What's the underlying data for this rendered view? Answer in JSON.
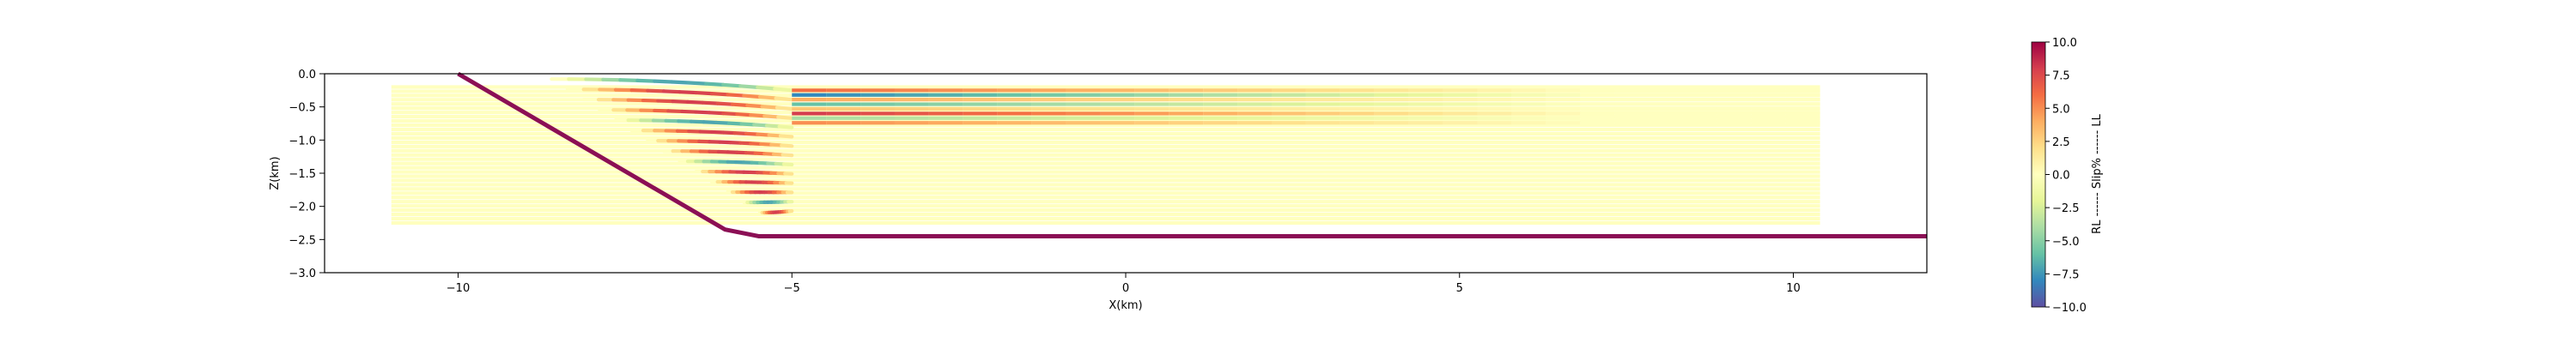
{
  "chart_data": {
    "type": "line",
    "title": "",
    "xlabel": "X(km)",
    "ylabel": "Z(km)",
    "xlim": [
      -12,
      12
    ],
    "ylim": [
      -3.0,
      0.0
    ],
    "x_ticks": [
      -10,
      -5,
      0,
      5,
      10
    ],
    "x_tick_labels": [
      "−10",
      "−5",
      "0",
      "5",
      "10"
    ],
    "y_ticks": [
      0.0,
      -0.5,
      -1.0,
      -1.5,
      -2.0,
      -2.5,
      -3.0
    ],
    "y_tick_labels": [
      "0.0",
      "−0.5",
      "−1.0",
      "−1.5",
      "−2.0",
      "−2.5",
      "−3.0"
    ],
    "grid": false,
    "colorbar": {
      "label": "RL ------ Slip% ------ LL",
      "min": -10.0,
      "max": 10.0,
      "ticks": [
        10.0,
        7.5,
        5.0,
        2.5,
        0.0,
        -2.5,
        -5.0,
        -7.5,
        -10.0
      ],
      "tick_labels": [
        "10.0",
        "7.5",
        "5.0",
        "2.5",
        "0.0",
        "−2.5",
        "−5.0",
        "−7.5",
        "−10.0"
      ],
      "colormap": "Spectral"
    },
    "main_fault": {
      "color": "#8b0f55",
      "points": [
        [
          -10.0,
          0.0
        ],
        [
          -6.0,
          -2.35
        ],
        [
          -5.5,
          -2.45
        ],
        [
          12.0,
          -2.45
        ]
      ]
    },
    "slip_layers": {
      "x_start": -11.0,
      "x_end": 10.4,
      "z_top": -0.2,
      "z_bottom": -2.25,
      "count": 33,
      "background_color": "#ffffbf",
      "strong_slip_x_range": [
        -7.5,
        -5.0
      ],
      "near_surface_band_z": [
        -0.2,
        -0.8
      ]
    }
  }
}
